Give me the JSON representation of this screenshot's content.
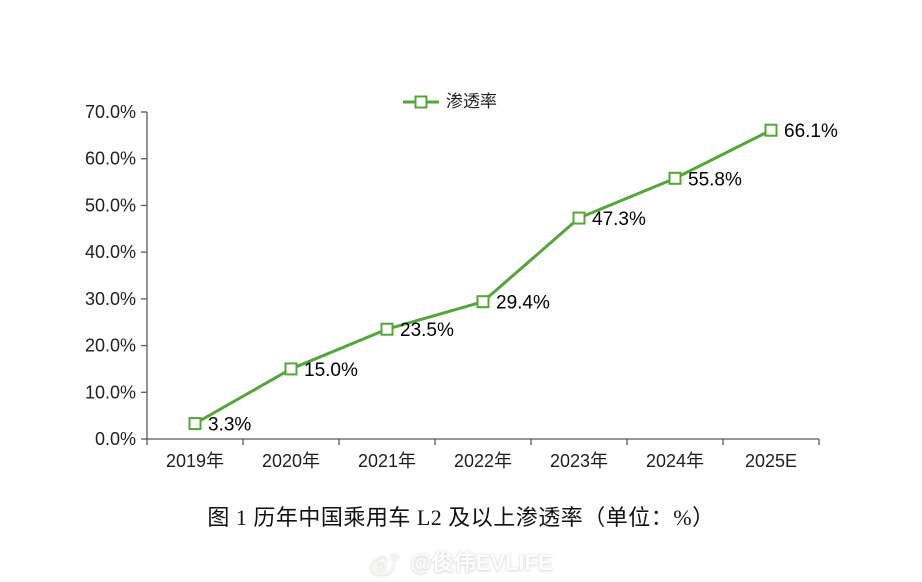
{
  "page": {
    "background": "#ffffff"
  },
  "legend": {
    "label": "渗透率"
  },
  "caption": "图 1 历年中国乘用车 L2 及以上渗透率（单位：%）",
  "watermark": {
    "icon": "weibo-icon",
    "text": "@俊伟EVLIFE"
  },
  "colors": {
    "line": "#56a43c",
    "marker_fill": "#ffffff",
    "axis": "#595959",
    "tick_text": "#1f1f1f",
    "data_label_text": "#000000"
  },
  "chart_data": {
    "type": "line",
    "categories": [
      "2019年",
      "2020年",
      "2021年",
      "2022年",
      "2023年",
      "2024年",
      "2025E"
    ],
    "series": [
      {
        "name": "渗透率",
        "values": [
          3.3,
          15.0,
          23.5,
          29.4,
          47.3,
          55.8,
          66.1
        ]
      }
    ],
    "data_labels": [
      "3.3%",
      "15.0%",
      "23.5%",
      "29.4%",
      "47.3%",
      "55.8%",
      "66.1%"
    ],
    "yticks": [
      "0.0%",
      "10.0%",
      "20.0%",
      "30.0%",
      "40.0%",
      "50.0%",
      "60.0%",
      "70.0%"
    ],
    "ylim": [
      0,
      70
    ],
    "ytick_step": 10,
    "grid": false,
    "legend_position": "top",
    "title": "",
    "xlabel": "",
    "ylabel": ""
  }
}
